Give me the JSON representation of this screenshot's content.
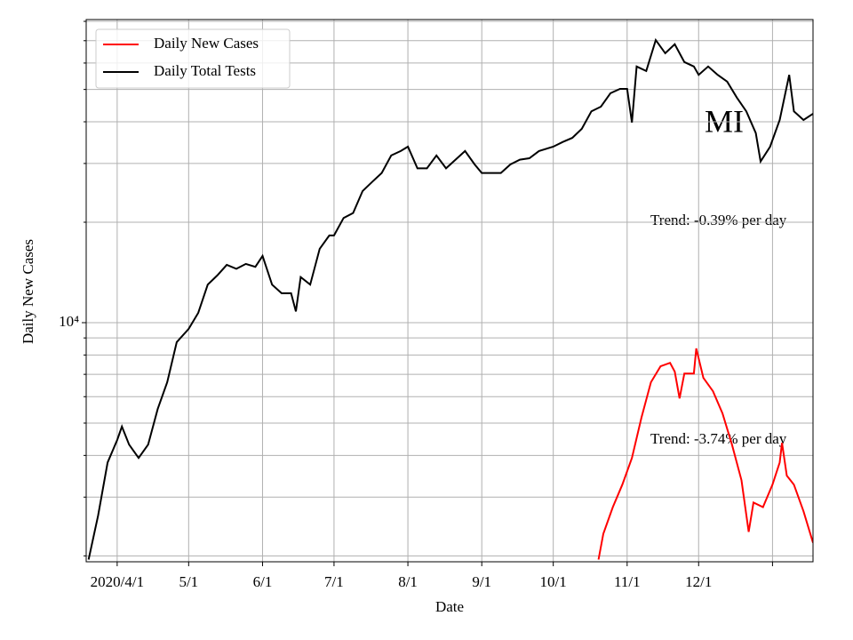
{
  "chart_data": {
    "type": "line",
    "y_label": "Daily New Cases",
    "x_label": "Date",
    "annotations": [
      "MI",
      "Trend: -0.39% per day",
      "Trend: -3.74% per day"
    ],
    "log_scale_y": true,
    "grid": true,
    "legend": "upper left",
    "xlim": [
      "2020-03-19",
      "2021-01-18"
    ],
    "xticks": [
      {
        "value": "2020-04-01",
        "label": "2020/4/1"
      },
      {
        "value": "2020-05-01",
        "label": "5/1"
      },
      {
        "value": "2020-06-01",
        "label": "6/1"
      },
      {
        "value": "2020-07-01",
        "label": "7/1"
      },
      {
        "value": "2020-08-01",
        "label": "8/1"
      },
      {
        "value": "2020-09-01",
        "label": "9/1"
      },
      {
        "value": "2020-10-01",
        "label": "10/1"
      },
      {
        "value": "2020-11-01",
        "label": "11/1"
      },
      {
        "value": "2020-12-01",
        "label": "12/1"
      }
    ],
    "unlabeled_xticks": [
      "2021-01-01"
    ],
    "ylim": [
      1920,
      81000
    ],
    "yticks": [
      {
        "value": 10000,
        "label": "10⁴"
      }
    ],
    "minor_yticks": [
      2000,
      3000,
      4000,
      5000,
      6000,
      7000,
      8000,
      9000,
      20000,
      30000,
      40000,
      50000,
      60000,
      70000,
      80000
    ],
    "series": [
      {
        "name": "Daily New Cases",
        "color": "#ff0000",
        "x": [
          "2020-10-20",
          "2020-10-22",
          "2020-10-26",
          "2020-10-30",
          "2020-11-03",
          "2020-11-07",
          "2020-11-11",
          "2020-11-15",
          "2020-11-19",
          "2020-11-21",
          "2020-11-23",
          "2020-11-25",
          "2020-11-29",
          "2020-11-30",
          "2020-12-03",
          "2020-12-07",
          "2020-12-11",
          "2020-12-15",
          "2020-12-19",
          "2020-12-22",
          "2020-12-24",
          "2020-12-28",
          "2021-01-01",
          "2021-01-04",
          "2021-01-05",
          "2021-01-07",
          "2021-01-10",
          "2021-01-14",
          "2021-01-18"
        ],
        "values": [
          1950,
          2330,
          2800,
          3270,
          3930,
          5190,
          6630,
          7400,
          7580,
          7130,
          5930,
          7040,
          7040,
          8370,
          6830,
          6230,
          5350,
          4310,
          3370,
          2360,
          2890,
          2800,
          3270,
          3810,
          4360,
          3480,
          3270,
          2720,
          2190
        ]
      },
      {
        "name": "Daily Total Tests",
        "color": "#000000",
        "x": [
          "2020-03-20",
          "2020-03-24",
          "2020-03-28",
          "2020-04-01",
          "2020-04-03",
          "2020-04-06",
          "2020-04-10",
          "2020-04-14",
          "2020-04-18",
          "2020-04-22",
          "2020-04-26",
          "2020-05-01",
          "2020-05-05",
          "2020-05-09",
          "2020-05-13",
          "2020-05-17",
          "2020-05-21",
          "2020-05-25",
          "2020-05-29",
          "2020-06-01",
          "2020-06-05",
          "2020-06-09",
          "2020-06-13",
          "2020-06-15",
          "2020-06-17",
          "2020-06-21",
          "2020-06-25",
          "2020-06-29",
          "2020-07-01",
          "2020-07-05",
          "2020-07-09",
          "2020-07-13",
          "2020-07-17",
          "2020-07-21",
          "2020-07-25",
          "2020-07-29",
          "2020-08-01",
          "2020-08-05",
          "2020-08-09",
          "2020-08-13",
          "2020-08-17",
          "2020-08-21",
          "2020-08-25",
          "2020-08-29",
          "2020-09-01",
          "2020-09-05",
          "2020-09-09",
          "2020-09-13",
          "2020-09-17",
          "2020-09-21",
          "2020-09-25",
          "2020-10-01",
          "2020-10-05",
          "2020-10-09",
          "2020-10-13",
          "2020-10-17",
          "2020-10-21",
          "2020-10-25",
          "2020-10-29",
          "2020-11-01",
          "2020-11-03",
          "2020-11-05",
          "2020-11-09",
          "2020-11-13",
          "2020-11-17",
          "2020-11-21",
          "2020-11-25",
          "2020-11-29",
          "2020-12-01",
          "2020-12-05",
          "2020-12-09",
          "2020-12-13",
          "2020-12-17",
          "2020-12-21",
          "2020-12-25",
          "2020-12-27",
          "2020-12-31",
          "2021-01-04",
          "2021-01-08",
          "2021-01-10",
          "2021-01-14",
          "2021-01-18"
        ],
        "values": [
          1950,
          2640,
          3810,
          4450,
          4880,
          4310,
          3930,
          4310,
          5510,
          6630,
          8740,
          9580,
          10700,
          13000,
          13850,
          14900,
          14500,
          15000,
          14700,
          15850,
          13000,
          12250,
          12250,
          10800,
          13700,
          13000,
          16650,
          18250,
          18250,
          20600,
          21300,
          24800,
          26400,
          28100,
          31700,
          32700,
          33700,
          29000,
          29000,
          31700,
          29000,
          30800,
          32700,
          29800,
          28100,
          28100,
          28100,
          29800,
          30800,
          31100,
          32700,
          33700,
          34800,
          35800,
          38100,
          43000,
          44400,
          48700,
          50200,
          50200,
          39800,
          58600,
          56800,
          70300,
          64200,
          68300,
          60400,
          58600,
          55300,
          58600,
          55300,
          52800,
          47300,
          43000,
          37000,
          30400,
          33700,
          40500,
          55300,
          43000,
          40500,
          42300
        ]
      }
    ]
  }
}
